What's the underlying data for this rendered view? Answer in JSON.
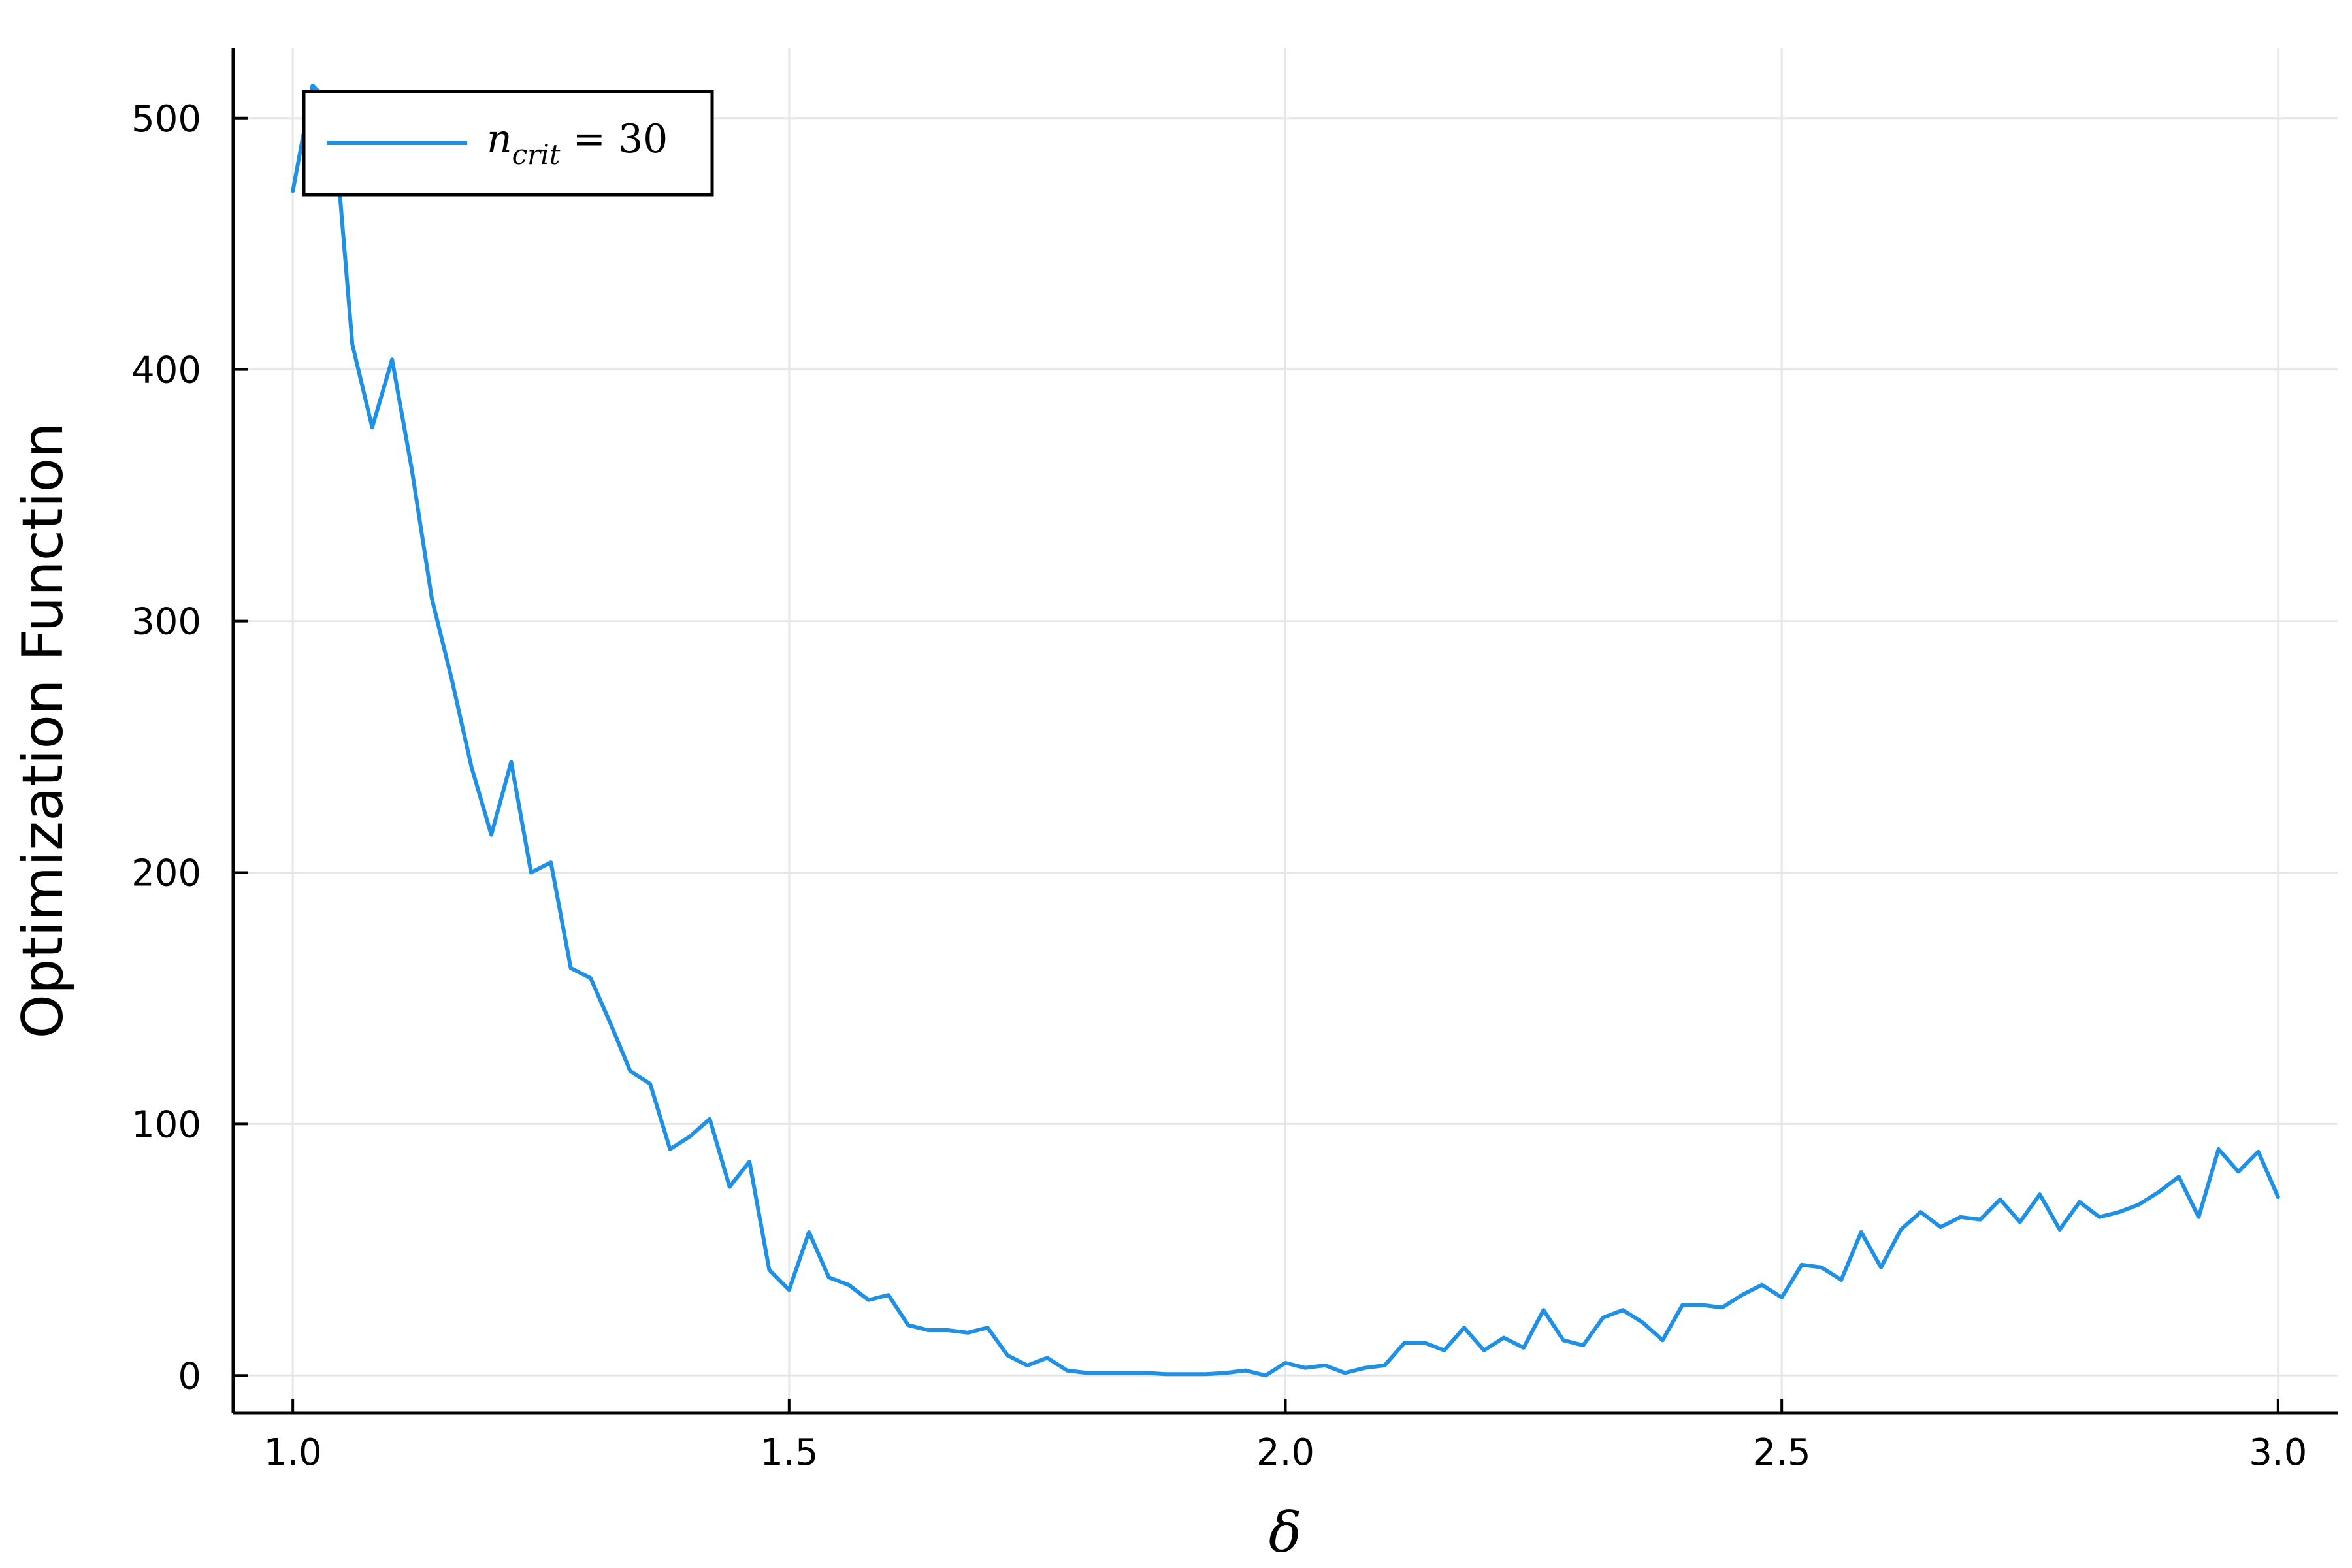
{
  "chart_data": {
    "type": "line",
    "xlabel": "δ",
    "ylabel": "Optimization Function",
    "xlim": [
      0.94,
      3.06
    ],
    "ylim": [
      -15,
      528
    ],
    "xticks": [
      1.0,
      1.5,
      2.0,
      2.5,
      3.0
    ],
    "xtick_labels": [
      "1.0",
      "1.5",
      "2.0",
      "2.5",
      "3.0"
    ],
    "yticks": [
      0,
      100,
      200,
      300,
      400,
      500
    ],
    "ytick_labels": [
      "0",
      "100",
      "200",
      "300",
      "400",
      "500"
    ],
    "grid": true,
    "legend_position": "top-left",
    "colors": {
      "series": "#1E90E5",
      "grid": "#E6E6E6",
      "axis": "#000000"
    },
    "series": [
      {
        "name": "n_crit = 30",
        "legend": {
          "base": "n",
          "sub": "crit",
          "rest": " = 30"
        },
        "x": [
          1.0,
          1.02,
          1.04,
          1.06,
          1.08,
          1.1,
          1.12,
          1.14,
          1.16,
          1.18,
          1.2,
          1.22,
          1.24,
          1.26,
          1.28,
          1.3,
          1.32,
          1.34,
          1.36,
          1.38,
          1.4,
          1.42,
          1.44,
          1.46,
          1.48,
          1.5,
          1.52,
          1.54,
          1.56,
          1.58,
          1.6,
          1.62,
          1.64,
          1.66,
          1.68,
          1.7,
          1.72,
          1.74,
          1.76,
          1.78,
          1.8,
          1.82,
          1.84,
          1.86,
          1.88,
          1.9,
          1.92,
          1.94,
          1.96,
          1.98,
          2.0,
          2.02,
          2.04,
          2.06,
          2.08,
          2.1,
          2.12,
          2.14,
          2.16,
          2.18,
          2.2,
          2.22,
          2.24,
          2.26,
          2.28,
          2.3,
          2.32,
          2.34,
          2.36,
          2.38,
          2.4,
          2.42,
          2.44,
          2.46,
          2.48,
          2.5,
          2.52,
          2.54,
          2.56,
          2.58,
          2.6,
          2.62,
          2.64,
          2.66,
          2.68,
          2.7,
          2.72,
          2.74,
          2.76,
          2.78,
          2.8,
          2.82,
          2.84,
          2.86,
          2.88,
          2.9,
          2.92,
          2.94,
          2.96,
          2.98,
          3.0
        ],
        "y": [
          471,
          513,
          505,
          410,
          377,
          404,
          360,
          309,
          277,
          242,
          215,
          244,
          200,
          204,
          162,
          158,
          140,
          121,
          116,
          90,
          95,
          102,
          75,
          85,
          42,
          34,
          57,
          39,
          36,
          30,
          32,
          20,
          18,
          18,
          17,
          19,
          8,
          4,
          7,
          2,
          1,
          1,
          1,
          1,
          0.5,
          0.5,
          0.5,
          1,
          2,
          0,
          5,
          3,
          4,
          1,
          3,
          4,
          13,
          13,
          10,
          19,
          10,
          15,
          11,
          26,
          14,
          12,
          23,
          26,
          21,
          14,
          28,
          28,
          27,
          32,
          36,
          31,
          44,
          43,
          38,
          57,
          43,
          58,
          65,
          59,
          63,
          62,
          70,
          61,
          72,
          58,
          69,
          63,
          65,
          68,
          73,
          79,
          63,
          90,
          81,
          89,
          71
        ]
      }
    ]
  }
}
